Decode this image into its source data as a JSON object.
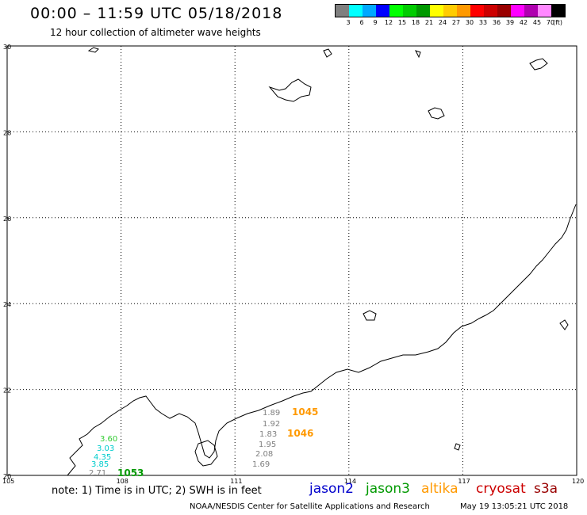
{
  "header": {
    "title": "00:00 – 11:59 UTC 05/18/2018",
    "subtitle": "12 hour collection of altimeter wave heights"
  },
  "legend": {
    "colors": [
      "#7f7f7f",
      "#00ffff",
      "#00a9ff",
      "#0000ff",
      "#00ff00",
      "#00cc00",
      "#009900",
      "#ffff00",
      "#ffcc00",
      "#ff9900",
      "#ff0000",
      "#cc0000",
      "#990000",
      "#ff00ff",
      "#b000b0",
      "#ff88ff",
      "#000000"
    ],
    "labels": [
      "3",
      "6",
      "9",
      "12",
      "15",
      "18",
      "21",
      "24",
      "27",
      "30",
      "33",
      "36",
      "39",
      "42",
      "45",
      "70",
      "(ft)"
    ]
  },
  "map": {
    "lat_labels": [
      "30",
      "28",
      "26",
      "24",
      "22",
      "20"
    ],
    "lon_labels": [
      "105",
      "108",
      "111",
      "114",
      "117",
      "120"
    ],
    "wave_labels": [
      {
        "text": "1.89",
        "color": "#808080"
      },
      {
        "text": "1.92",
        "color": "#808080"
      },
      {
        "text": "1.83",
        "color": "#808080"
      },
      {
        "text": "1.95",
        "color": "#808080"
      },
      {
        "text": "2.08",
        "color": "#808080"
      },
      {
        "text": "1.69",
        "color": "#808080"
      },
      {
        "text": "3.60",
        "color": "#33cc33"
      },
      {
        "text": "3.03",
        "color": "#00cccc"
      },
      {
        "text": "4.35",
        "color": "#00cccc"
      },
      {
        "text": "3.85",
        "color": "#00cccc"
      },
      {
        "text": "2.71",
        "color": "#808080"
      }
    ],
    "pass_labels": [
      {
        "text": "1045",
        "color": "#ff9900"
      },
      {
        "text": "1046",
        "color": "#ff9900"
      },
      {
        "text": "1053",
        "color": "#009900"
      }
    ]
  },
  "footer": {
    "note": "note: 1) Time is in UTC; 2) SWH is in feet",
    "satellites": [
      {
        "name": "jason2",
        "color": "#0000cc"
      },
      {
        "name": "jason3",
        "color": "#009900"
      },
      {
        "name": "altika",
        "color": "#ff9900"
      },
      {
        "name": "cryosat",
        "color": "#cc0000"
      },
      {
        "name": "s3a",
        "color": "#990000"
      }
    ],
    "credit": "NOAA/NESDIS Center for Satellite Applications and Research",
    "timestamp": "May 19 13:05:21 UTC 2018"
  }
}
